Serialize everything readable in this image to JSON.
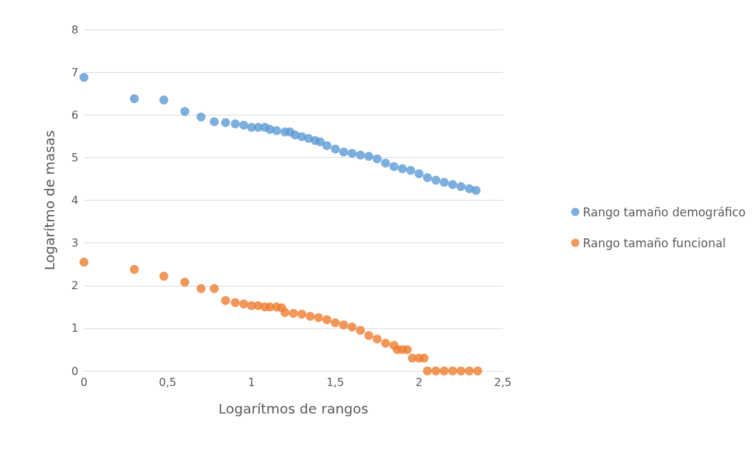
{
  "chart_data": {
    "type": "scatter",
    "xlabel": "Logarítmos de rangos",
    "ylabel": "Logarítmo de masas",
    "xlim": [
      0,
      2.5
    ],
    "xticks": [
      0,
      {
        "value": 0.5,
        "label": "0,5"
      },
      1,
      {
        "value": 1.5,
        "label": "1,5"
      },
      2,
      {
        "value": 2.5,
        "label": "2,5"
      }
    ],
    "ylim": [
      0,
      8
    ],
    "yticks": [
      0,
      1,
      2,
      3,
      4,
      5,
      6,
      7,
      8
    ],
    "grid": "y",
    "legend": "right",
    "marker": "circle",
    "series": [
      {
        "name": "Rango tamaño demográfico",
        "color": "#5b9bd5",
        "x": [
          0,
          0.301,
          0.477,
          0.602,
          0.699,
          0.778,
          0.845,
          0.903,
          0.954,
          1.0,
          1.04,
          1.08,
          1.11,
          1.15,
          1.2,
          1.23,
          1.26,
          1.3,
          1.34,
          1.38,
          1.41,
          1.45,
          1.5,
          1.55,
          1.6,
          1.65,
          1.7,
          1.75,
          1.8,
          1.85,
          1.9,
          1.95,
          2.0,
          2.05,
          2.1,
          2.15,
          2.2,
          2.25,
          2.3,
          2.34
        ],
        "values": [
          6.88,
          6.38,
          6.35,
          6.08,
          5.95,
          5.84,
          5.82,
          5.79,
          5.76,
          5.71,
          5.71,
          5.71,
          5.66,
          5.63,
          5.6,
          5.6,
          5.53,
          5.49,
          5.45,
          5.4,
          5.37,
          5.28,
          5.2,
          5.13,
          5.1,
          5.06,
          5.03,
          4.97,
          4.87,
          4.79,
          4.74,
          4.7,
          4.62,
          4.53,
          4.47,
          4.42,
          4.37,
          4.32,
          4.27,
          4.23
        ]
      },
      {
        "name": "Rango tamaño funcional",
        "color": "#ed7d31",
        "x": [
          0,
          0.301,
          0.477,
          0.602,
          0.699,
          0.778,
          0.845,
          0.903,
          0.954,
          1.0,
          1.04,
          1.08,
          1.11,
          1.15,
          1.18,
          1.2,
          1.25,
          1.3,
          1.35,
          1.4,
          1.45,
          1.5,
          1.55,
          1.6,
          1.65,
          1.7,
          1.75,
          1.8,
          1.85,
          1.87,
          1.9,
          1.93,
          1.96,
          2.0,
          2.03,
          2.05,
          2.1,
          2.15,
          2.2,
          2.25,
          2.3,
          2.35
        ],
        "values": [
          2.55,
          2.38,
          2.22,
          2.08,
          1.93,
          1.93,
          1.65,
          1.6,
          1.57,
          1.53,
          1.53,
          1.5,
          1.5,
          1.5,
          1.48,
          1.37,
          1.35,
          1.33,
          1.28,
          1.25,
          1.2,
          1.13,
          1.08,
          1.03,
          0.95,
          0.83,
          0.75,
          0.65,
          0.6,
          0.5,
          0.5,
          0.5,
          0.3,
          0.3,
          0.3,
          0,
          0,
          0,
          0,
          0,
          0,
          0
        ]
      }
    ]
  }
}
